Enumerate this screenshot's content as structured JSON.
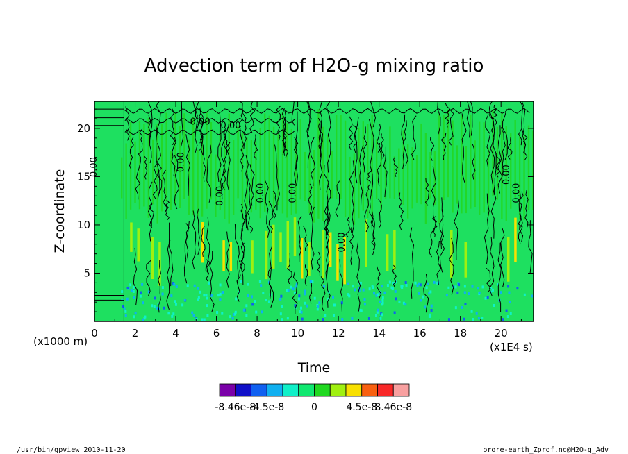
{
  "chart_data": {
    "type": "heatmap",
    "title": "Advection term of H2O-g mixing ratio",
    "xlabel": "Time",
    "ylabel": "Z-coordinate",
    "x_unit": "(x1E4 s)",
    "y_unit": "(x1000 m)",
    "xlim": [
      0,
      21.6
    ],
    "ylim": [
      0,
      22.8
    ],
    "x_ticks": [
      0,
      2,
      4,
      6,
      8,
      10,
      12,
      14,
      16,
      18,
      20
    ],
    "y_ticks": [
      5,
      10,
      15,
      20
    ],
    "contour_label": "0.00",
    "colorbar": {
      "colors": [
        "#7a00a8",
        "#1010c8",
        "#1060f0",
        "#10b0f0",
        "#10f0c8",
        "#10e870",
        "#20d820",
        "#a0f010",
        "#f8e000",
        "#f86010",
        "#f82828",
        "#f8a0a0"
      ],
      "tick_labels": [
        "-8.46e-8",
        "-4.5e-8",
        "0",
        "4.5e-8",
        "8.46e-8"
      ]
    }
  },
  "footer": {
    "left": "/usr/bin/gpview   2010-11-20",
    "right": "orore-earth_Zprof.nc@H2O-g_Adv"
  }
}
